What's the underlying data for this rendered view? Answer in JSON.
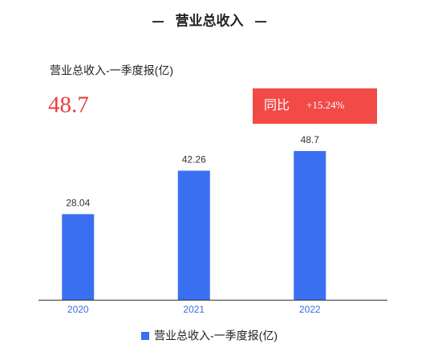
{
  "chart_data": {
    "type": "bar",
    "title": "营业总收入",
    "subtitle": "营业总收入-一季度报(亿)",
    "headline_value": 48.7,
    "change_label": "同比",
    "change": "+15.24%",
    "categories": [
      "2020",
      "2021",
      "2022"
    ],
    "series": [
      {
        "name": "营业总收入-一季度报(亿)",
        "color": "#3b6ff2",
        "values": [
          28.04,
          42.26,
          48.7
        ]
      }
    ]
  }
}
